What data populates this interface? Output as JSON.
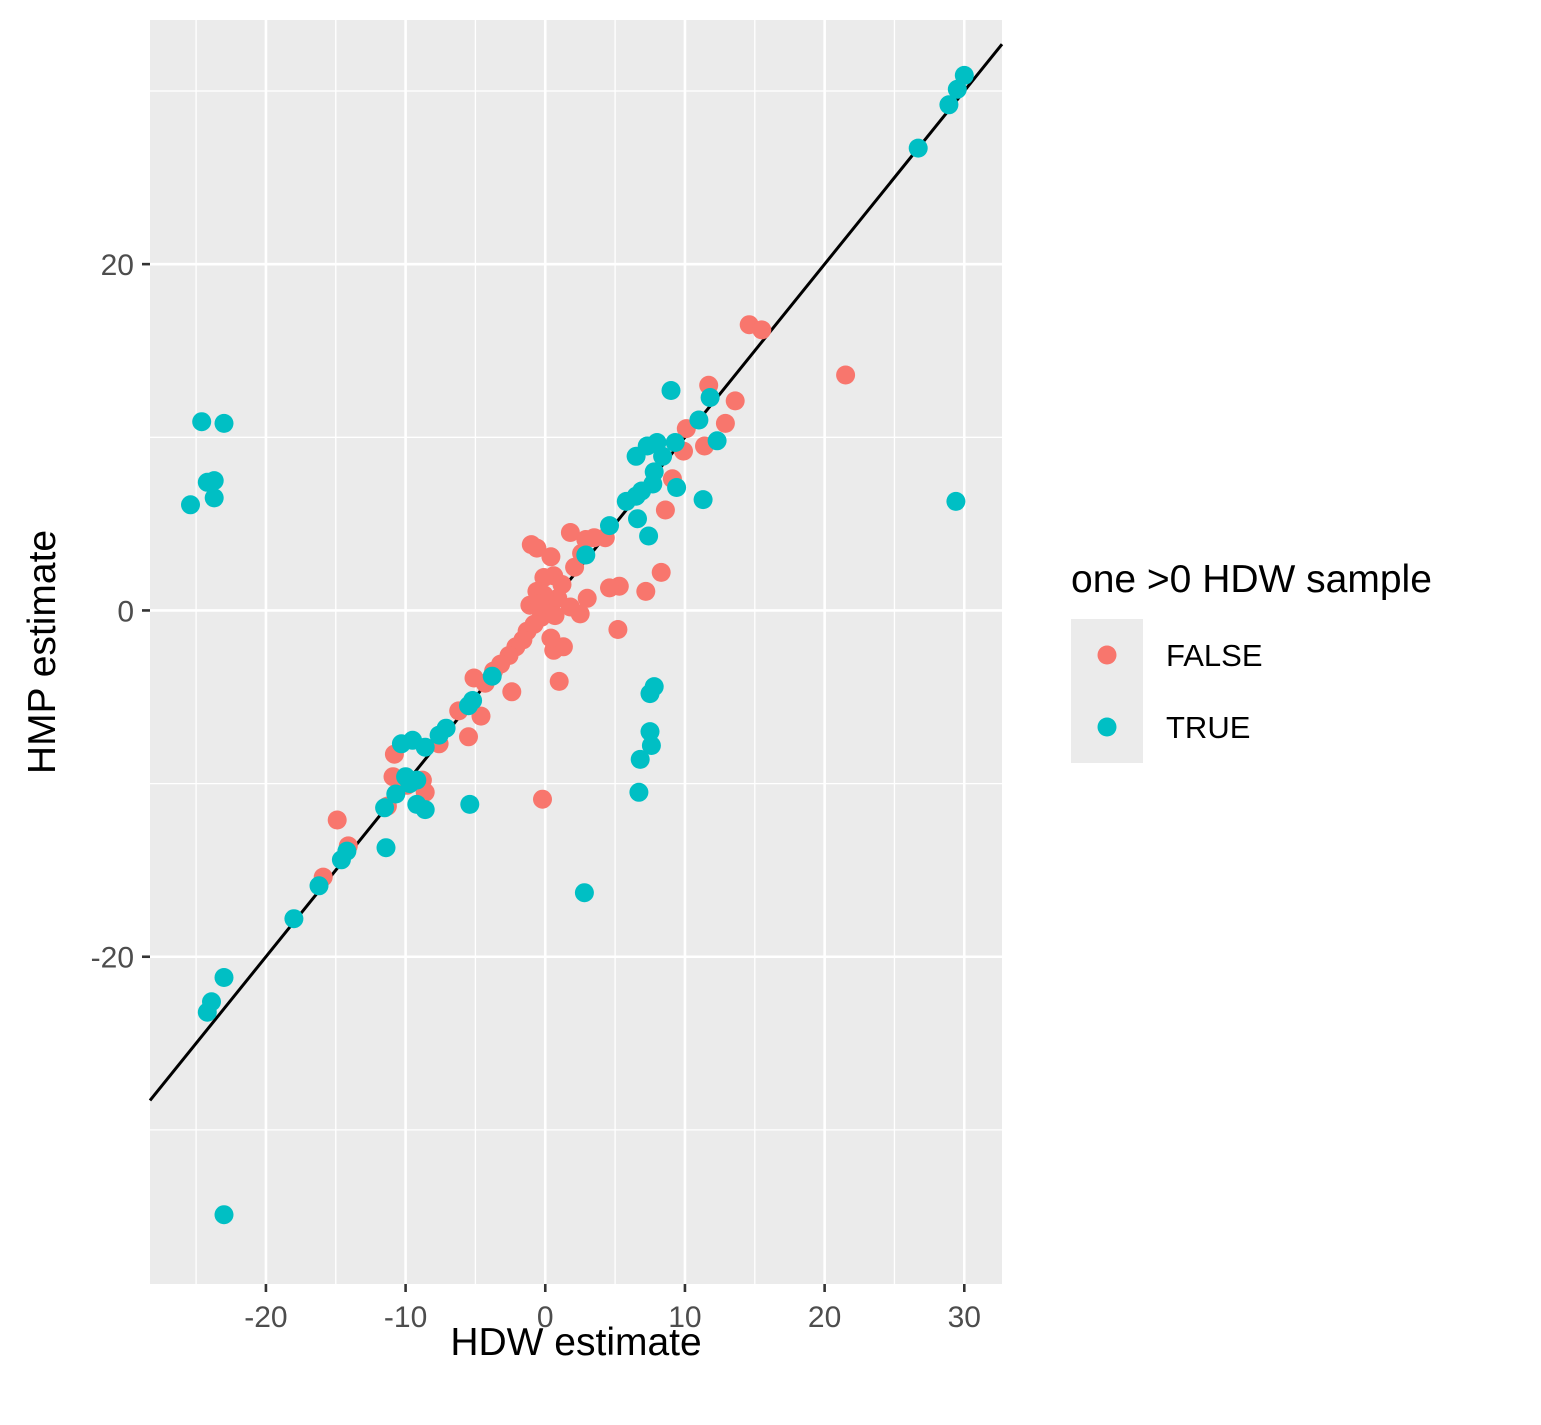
{
  "chart_data": {
    "type": "scatter",
    "xlabel": "HDW estimate",
    "ylabel": "HMP estimate",
    "xlim": [
      -28.3,
      32.7
    ],
    "ylim": [
      -38.9,
      34.1
    ],
    "x_ticks": [
      -20,
      -10,
      0,
      10,
      20,
      30
    ],
    "x_tick_labels": [
      "-20",
      "-10",
      "0",
      "10",
      "20",
      "30"
    ],
    "y_ticks": [
      -20,
      0,
      20
    ],
    "y_tick_labels": [
      "-20",
      "0",
      "20"
    ],
    "grid": true,
    "reference_line": {
      "slope": 1,
      "intercept": 0,
      "color": "#000000"
    },
    "legend": {
      "title": "one >0 HDW sample",
      "position": "right",
      "entries": [
        {
          "label": "FALSE",
          "color": "#F8766D"
        },
        {
          "label": "TRUE",
          "color": "#00BFC4"
        }
      ]
    },
    "series": [
      {
        "name": "FALSE",
        "color": "#F8766D",
        "points": [
          [
            14.6,
            16.5
          ],
          [
            15.5,
            16.2
          ],
          [
            21.5,
            13.6
          ],
          [
            11.7,
            13.0
          ],
          [
            13.6,
            12.1
          ],
          [
            12.9,
            10.8
          ],
          [
            10.1,
            10.5
          ],
          [
            9.9,
            9.2
          ],
          [
            11.4,
            9.5
          ],
          [
            9.1,
            7.6
          ],
          [
            8.6,
            5.8
          ],
          [
            8.3,
            2.2
          ],
          [
            7.2,
            1.1
          ],
          [
            5.3,
            1.4
          ],
          [
            5.2,
            -1.1
          ],
          [
            4.6,
            1.3
          ],
          [
            4.3,
            4.2
          ],
          [
            3.5,
            4.2
          ],
          [
            2.9,
            4.1
          ],
          [
            2.6,
            3.3
          ],
          [
            1.8,
            4.5
          ],
          [
            0.4,
            3.1
          ],
          [
            -0.6,
            3.6
          ],
          [
            -1.0,
            3.8
          ],
          [
            2.1,
            2.5
          ],
          [
            3.0,
            0.7
          ],
          [
            2.5,
            -0.2
          ],
          [
            1.8,
            0.2
          ],
          [
            1.2,
            1.5
          ],
          [
            0.6,
            2.0
          ],
          [
            -0.1,
            1.9
          ],
          [
            -0.6,
            1.1
          ],
          [
            -1.1,
            0.3
          ],
          [
            0.9,
            0.7
          ],
          [
            0.3,
            0.1
          ],
          [
            -0.3,
            -0.4
          ],
          [
            -0.8,
            -0.8
          ],
          [
            -1.3,
            -1.2
          ],
          [
            -1.6,
            -1.7
          ],
          [
            -2.1,
            -2.1
          ],
          [
            -2.6,
            -2.6
          ],
          [
            -3.2,
            -3.1
          ],
          [
            -3.7,
            -3.5
          ],
          [
            -4.3,
            -4.2
          ],
          [
            -5.1,
            -3.9
          ],
          [
            -2.4,
            -4.7
          ],
          [
            0.6,
            -2.3
          ],
          [
            1.3,
            -2.1
          ],
          [
            0.4,
            -1.6
          ],
          [
            1.0,
            -4.1
          ],
          [
            -0.2,
            -10.9
          ],
          [
            -5.5,
            -7.3
          ],
          [
            -4.6,
            -6.1
          ],
          [
            -6.2,
            -5.8
          ],
          [
            -7.6,
            -7.7
          ],
          [
            -8.8,
            -9.8
          ],
          [
            -8.6,
            -10.5
          ],
          [
            -10.8,
            -8.3
          ],
          [
            -10.9,
            -9.6
          ],
          [
            -9.9,
            -10.1
          ],
          [
            -11.3,
            -11.3
          ],
          [
            -14.9,
            -12.1
          ],
          [
            -14.1,
            -13.6
          ],
          [
            -15.9,
            -15.4
          ],
          [
            -0.1,
            0.9
          ],
          [
            0.7,
            -0.3
          ],
          [
            -0.4,
            0.4
          ]
        ]
      },
      {
        "name": "TRUE",
        "color": "#00BFC4",
        "points": [
          [
            30.0,
            30.9
          ],
          [
            29.5,
            30.1
          ],
          [
            28.9,
            29.2
          ],
          [
            26.7,
            26.7
          ],
          [
            29.4,
            6.3
          ],
          [
            11.8,
            12.3
          ],
          [
            9.0,
            12.7
          ],
          [
            12.3,
            9.8
          ],
          [
            11.0,
            11.0
          ],
          [
            9.3,
            9.7
          ],
          [
            8.0,
            9.7
          ],
          [
            7.3,
            9.5
          ],
          [
            8.4,
            8.9
          ],
          [
            6.5,
            8.9
          ],
          [
            7.8,
            8.0
          ],
          [
            7.7,
            7.3
          ],
          [
            6.9,
            6.9
          ],
          [
            6.5,
            6.6
          ],
          [
            9.4,
            7.1
          ],
          [
            11.3,
            6.4
          ],
          [
            5.8,
            6.3
          ],
          [
            4.6,
            4.9
          ],
          [
            7.4,
            4.3
          ],
          [
            6.6,
            5.3
          ],
          [
            2.9,
            3.2
          ],
          [
            7.8,
            -4.4
          ],
          [
            7.5,
            -4.8
          ],
          [
            7.5,
            -7.0
          ],
          [
            7.6,
            -7.8
          ],
          [
            6.8,
            -8.6
          ],
          [
            6.7,
            -10.5
          ],
          [
            2.8,
            -16.3
          ],
          [
            -3.8,
            -3.8
          ],
          [
            -5.2,
            -5.2
          ],
          [
            -5.5,
            -5.5
          ],
          [
            -7.1,
            -6.8
          ],
          [
            -7.6,
            -7.2
          ],
          [
            -8.6,
            -7.9
          ],
          [
            -9.5,
            -7.5
          ],
          [
            -10.3,
            -7.7
          ],
          [
            -9.2,
            -9.8
          ],
          [
            -10.0,
            -9.6
          ],
          [
            -9.7,
            -10.0
          ],
          [
            -10.7,
            -10.6
          ],
          [
            -9.2,
            -11.2
          ],
          [
            -8.6,
            -11.5
          ],
          [
            -5.4,
            -11.2
          ],
          [
            -11.5,
            -11.4
          ],
          [
            -11.4,
            -13.7
          ],
          [
            -14.2,
            -13.9
          ],
          [
            -14.6,
            -14.4
          ],
          [
            -16.2,
            -15.9
          ],
          [
            -18.0,
            -17.8
          ],
          [
            -23.0,
            -21.2
          ],
          [
            -23.9,
            -22.6
          ],
          [
            -24.2,
            -23.2
          ],
          [
            -23.0,
            -34.9
          ],
          [
            -24.6,
            10.9
          ],
          [
            -23.0,
            10.8
          ],
          [
            -24.2,
            7.4
          ],
          [
            -23.7,
            7.5
          ],
          [
            -23.7,
            6.5
          ],
          [
            -25.4,
            6.1
          ]
        ]
      }
    ]
  }
}
